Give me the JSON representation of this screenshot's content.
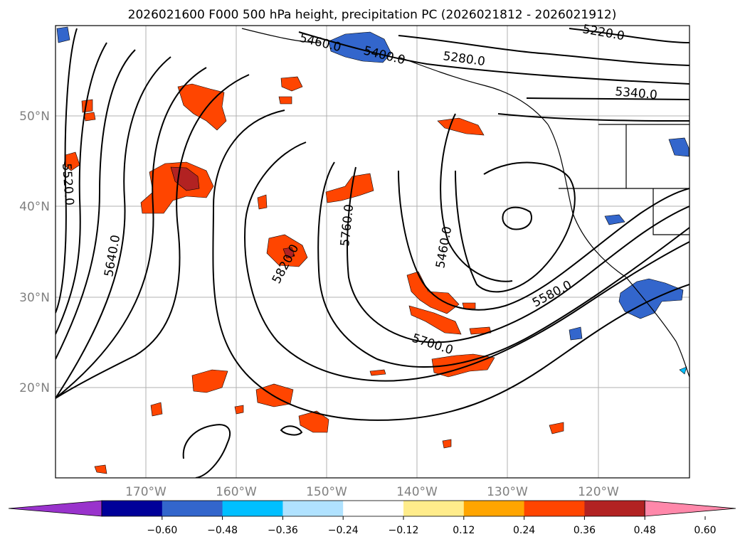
{
  "title": "2026021600 F000 500 hPa height, precipitation PC (2026021812 - 2026021912)",
  "map": {
    "lat_labels": [
      "50°N",
      "40°N",
      "30°N",
      "20°N"
    ],
    "lon_labels": [
      "170°W",
      "160°W",
      "150°W",
      "140°W",
      "130°W",
      "120°W"
    ],
    "grid": true,
    "contour_labels": [
      "5460.0",
      "5400.0",
      "5280.0",
      "5220.0",
      "5340.0",
      "5520.0",
      "5640.0",
      "5820.0",
      "5760.0",
      "5460.0",
      "5580.0",
      "5700.0"
    ]
  },
  "colorbar": {
    "ticks": [
      "−0.60",
      "−0.48",
      "−0.36",
      "−0.24",
      "−0.12",
      "0.12",
      "0.24",
      "0.36",
      "0.48",
      "0.60"
    ],
    "colors": [
      "#9933cc",
      "#000099",
      "#3366cc",
      "#00bfff",
      "#b0e2ff",
      "#ffffff",
      "#ffec8b",
      "#ffa500",
      "#ff4500",
      "#b22222",
      "#ff88aa"
    ]
  }
}
